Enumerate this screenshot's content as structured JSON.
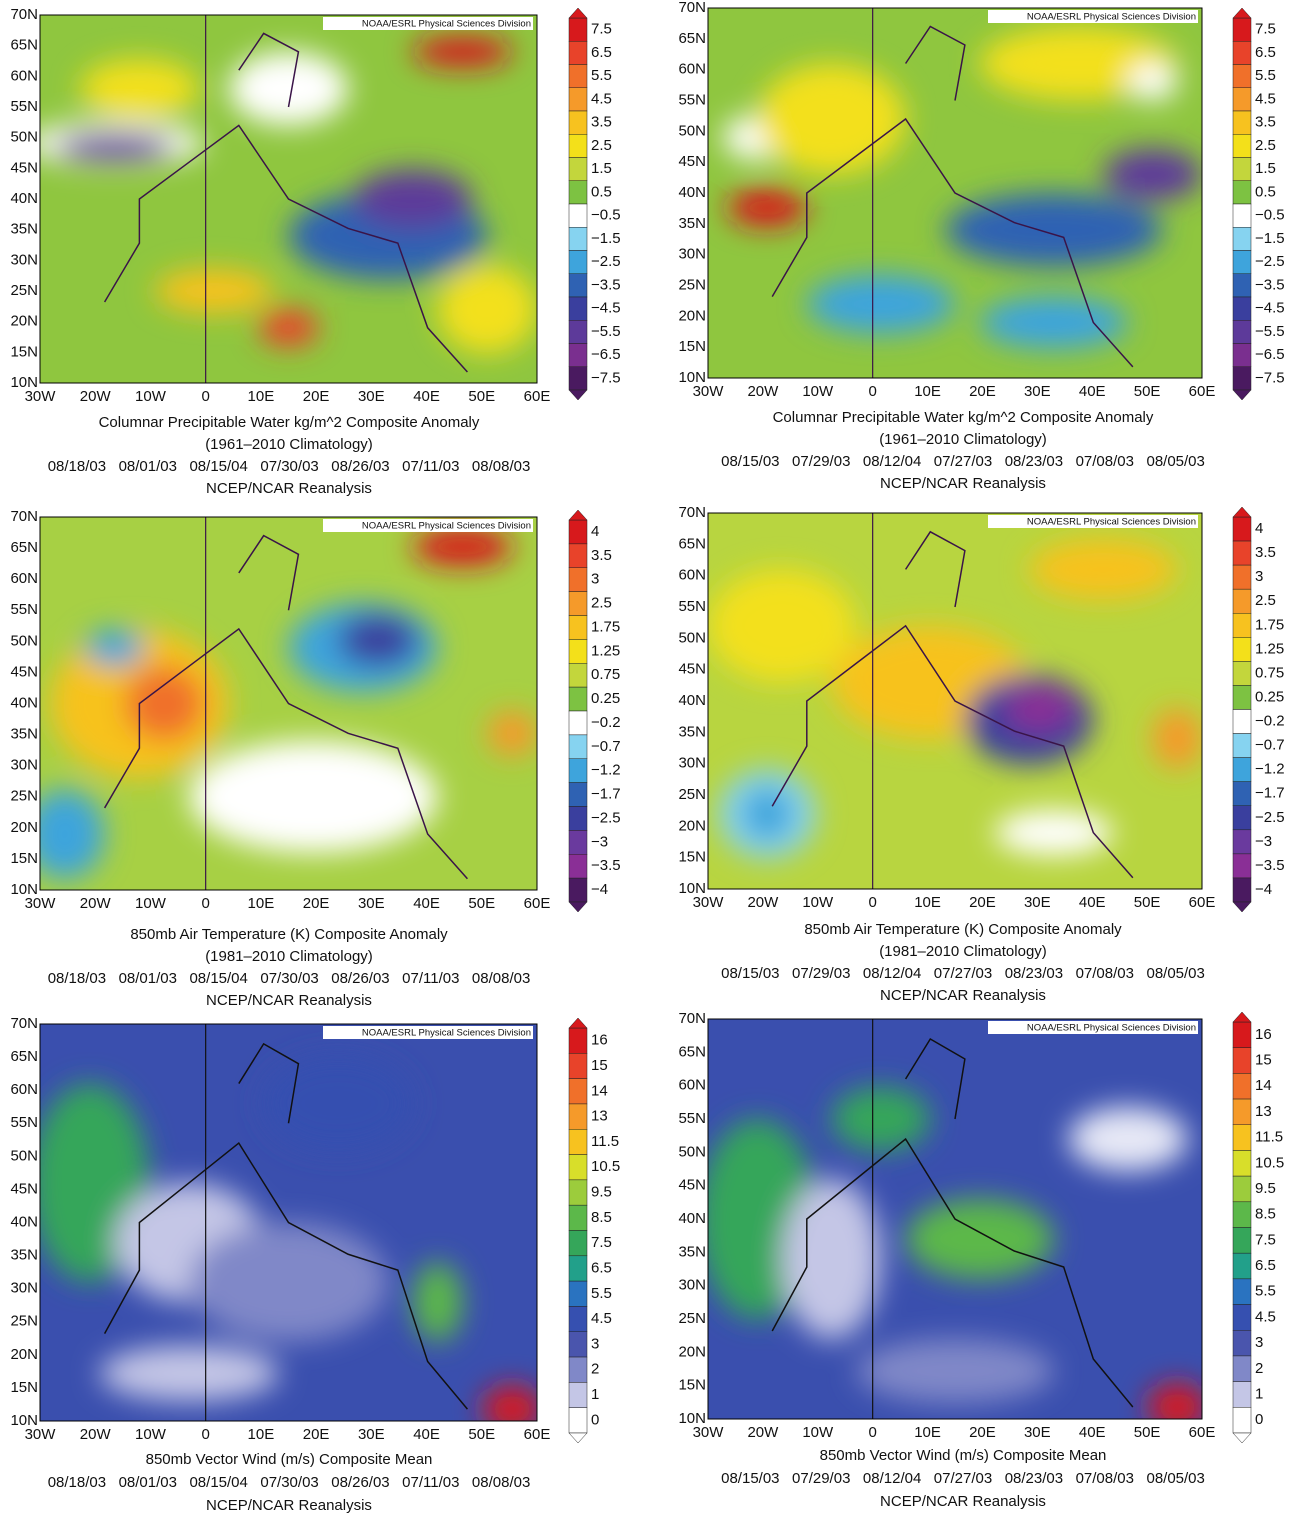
{
  "panels": [
    {
      "credit": "NOAA/ESRL Physical Sciences Division",
      "lat_labels": [
        "70N",
        "65N",
        "60N",
        "55N",
        "50N",
        "45N",
        "40N",
        "35N",
        "30N",
        "25N",
        "20N",
        "15N",
        "10N"
      ],
      "lon_labels": [
        "30W",
        "20W",
        "10W",
        "0",
        "10E",
        "20E",
        "30E",
        "40E",
        "50E",
        "60E"
      ],
      "colorbar": {
        "labels": [
          "7.5",
          "6.5",
          "5.5",
          "4.5",
          "3.5",
          "2.5",
          "1.5",
          "0.5",
          "−0.5",
          "−1.5",
          "−2.5",
          "−3.5",
          "−4.5",
          "−5.5",
          "−6.5",
          "−7.5"
        ],
        "colors": [
          "#d7191c",
          "#e8432a",
          "#f0702a",
          "#f59a2a",
          "#f7c21f",
          "#f3e01a",
          "#c3d63c",
          "#7dc242",
          "#ffffff",
          "#86d3f0",
          "#3ea4dc",
          "#2f62b3",
          "#3a3f9e",
          "#5d3a9a",
          "#7a2f8f",
          "#4a1a60"
        ]
      },
      "caption": [
        "Columnar Precipitable Water kg/m^2 Composite Anomaly",
        "(1961–2010 Climatology)",
        "08/18/03   08/01/03   08/15/04   07/30/03   08/26/03   07/11/03   08/08/03",
        "NCEP/NCAR Reanalysis"
      ]
    },
    {
      "credit": "NOAA/ESRL Physical Sciences Division",
      "lat_labels": [
        "70N",
        "65N",
        "60N",
        "55N",
        "50N",
        "45N",
        "40N",
        "35N",
        "30N",
        "25N",
        "20N",
        "15N",
        "10N"
      ],
      "lon_labels": [
        "30W",
        "20W",
        "10W",
        "0",
        "10E",
        "20E",
        "30E",
        "40E",
        "50E",
        "60E"
      ],
      "colorbar": {
        "labels": [
          "7.5",
          "6.5",
          "5.5",
          "4.5",
          "3.5",
          "2.5",
          "1.5",
          "0.5",
          "−0.5",
          "−1.5",
          "−2.5",
          "−3.5",
          "−4.5",
          "−5.5",
          "−6.5",
          "−7.5"
        ],
        "colors": [
          "#d7191c",
          "#e8432a",
          "#f0702a",
          "#f59a2a",
          "#f7c21f",
          "#f3e01a",
          "#c3d63c",
          "#7dc242",
          "#ffffff",
          "#86d3f0",
          "#3ea4dc",
          "#2f62b3",
          "#3a3f9e",
          "#5d3a9a",
          "#7a2f8f",
          "#4a1a60"
        ]
      },
      "caption": [
        "Columnar Precipitable Water kg/m^2 Composite Anomaly",
        "(1961–2010 Climatology)",
        "08/15/03   07/29/03   08/12/04   07/27/03   08/23/03   07/08/03   08/05/03",
        "NCEP/NCAR Reanalysis"
      ]
    },
    {
      "credit": "NOAA/ESRL Physical Sciences Division",
      "lat_labels": [
        "70N",
        "65N",
        "60N",
        "55N",
        "50N",
        "45N",
        "40N",
        "35N",
        "30N",
        "25N",
        "20N",
        "15N",
        "10N"
      ],
      "lon_labels": [
        "30W",
        "20W",
        "10W",
        "0",
        "10E",
        "20E",
        "30E",
        "40E",
        "50E",
        "60E"
      ],
      "colorbar": {
        "labels": [
          "4",
          "3.5",
          "3",
          "2.5",
          "1.75",
          "1.25",
          "0.75",
          "0.25",
          "−0.2",
          "−0.7",
          "−1.2",
          "−1.7",
          "−2.5",
          "−3",
          "−3.5",
          "−4"
        ],
        "colors": [
          "#d7191c",
          "#e8432a",
          "#f0702a",
          "#f59a2a",
          "#f7c21f",
          "#f3e01a",
          "#c3d63c",
          "#7dc242",
          "#ffffff",
          "#86d3f0",
          "#3ea4dc",
          "#2f62b3",
          "#3a3f9e",
          "#6a3a9e",
          "#8a2f96",
          "#4a1a60"
        ]
      },
      "caption": [
        "850mb Air Temperature (K) Composite Anomaly",
        "(1981–2010 Climatology)",
        "08/18/03   08/01/03   08/15/04   07/30/03   08/26/03   07/11/03   08/08/03",
        "NCEP/NCAR Reanalysis"
      ]
    },
    {
      "credit": "NOAA/ESRL Physical Sciences Division",
      "lat_labels": [
        "70N",
        "65N",
        "60N",
        "55N",
        "50N",
        "45N",
        "40N",
        "35N",
        "30N",
        "25N",
        "20N",
        "15N",
        "10N"
      ],
      "lon_labels": [
        "30W",
        "20W",
        "10W",
        "0",
        "10E",
        "20E",
        "30E",
        "40E",
        "50E",
        "60E"
      ],
      "colorbar": {
        "labels": [
          "4",
          "3.5",
          "3",
          "2.5",
          "1.75",
          "1.25",
          "0.75",
          "0.25",
          "−0.2",
          "−0.7",
          "−1.2",
          "−1.7",
          "−2.5",
          "−3",
          "−3.5",
          "−4"
        ],
        "colors": [
          "#d7191c",
          "#e8432a",
          "#f0702a",
          "#f59a2a",
          "#f7c21f",
          "#f3e01a",
          "#c3d63c",
          "#7dc242",
          "#ffffff",
          "#86d3f0",
          "#3ea4dc",
          "#2f62b3",
          "#3a3f9e",
          "#6a3a9e",
          "#8a2f96",
          "#4a1a60"
        ]
      },
      "caption": [
        "850mb Air Temperature (K) Composite Anomaly",
        "(1981–2010 Climatology)",
        "08/15/03   07/29/03   08/12/04   07/27/03   08/23/03   07/08/03   08/05/03",
        "NCEP/NCAR Reanalysis"
      ]
    },
    {
      "credit": "NOAA/ESRL Physical Sciences Division",
      "lat_labels": [
        "70N",
        "65N",
        "60N",
        "55N",
        "50N",
        "45N",
        "40N",
        "35N",
        "30N",
        "25N",
        "20N",
        "15N",
        "10N"
      ],
      "lon_labels": [
        "30W",
        "20W",
        "10W",
        "0",
        "10E",
        "20E",
        "30E",
        "40E",
        "50E",
        "60E"
      ],
      "colorbar": {
        "labels": [
          "16",
          "15",
          "14",
          "13",
          "11.5",
          "10.5",
          "9.5",
          "8.5",
          "7.5",
          "6.5",
          "5.5",
          "4.5",
          "3",
          "2",
          "1",
          "0"
        ],
        "colors": [
          "#d7191c",
          "#e8432a",
          "#f0702a",
          "#f59a2a",
          "#f7c21f",
          "#d8de2a",
          "#9ccc3c",
          "#5cb84a",
          "#35a65a",
          "#22a08a",
          "#2a73c0",
          "#3650b0",
          "#4a55ad",
          "#8088c8",
          "#c4c6e6",
          "#ffffff"
        ]
      },
      "caption": [
        "850mb Vector Wind (m/s) Composite Mean",
        "08/18/03   08/01/03   08/15/04   07/30/03   08/26/03   07/11/03   08/08/03",
        "NCEP/NCAR Reanalysis"
      ]
    },
    {
      "credit": "NOAA/ESRL Physical Sciences Division",
      "lat_labels": [
        "70N",
        "65N",
        "60N",
        "55N",
        "50N",
        "45N",
        "40N",
        "35N",
        "30N",
        "25N",
        "20N",
        "15N",
        "10N"
      ],
      "lon_labels": [
        "30W",
        "20W",
        "10W",
        "0",
        "10E",
        "20E",
        "30E",
        "40E",
        "50E",
        "60E"
      ],
      "colorbar": {
        "labels": [
          "16",
          "15",
          "14",
          "13",
          "11.5",
          "10.5",
          "9.5",
          "8.5",
          "7.5",
          "6.5",
          "5.5",
          "4.5",
          "3",
          "2",
          "1",
          "0"
        ],
        "colors": [
          "#d7191c",
          "#e8432a",
          "#f0702a",
          "#f59a2a",
          "#f7c21f",
          "#d8de2a",
          "#9ccc3c",
          "#5cb84a",
          "#35a65a",
          "#22a08a",
          "#2a73c0",
          "#3650b0",
          "#4a55ad",
          "#8088c8",
          "#c4c6e6",
          "#ffffff"
        ]
      },
      "caption": [
        "850mb Vector Wind (m/s) Composite Mean",
        "08/15/03   07/29/03   08/12/04   07/27/03   08/23/03   07/08/03   08/05/03",
        "NCEP/NCAR Reanalysis"
      ]
    }
  ]
}
